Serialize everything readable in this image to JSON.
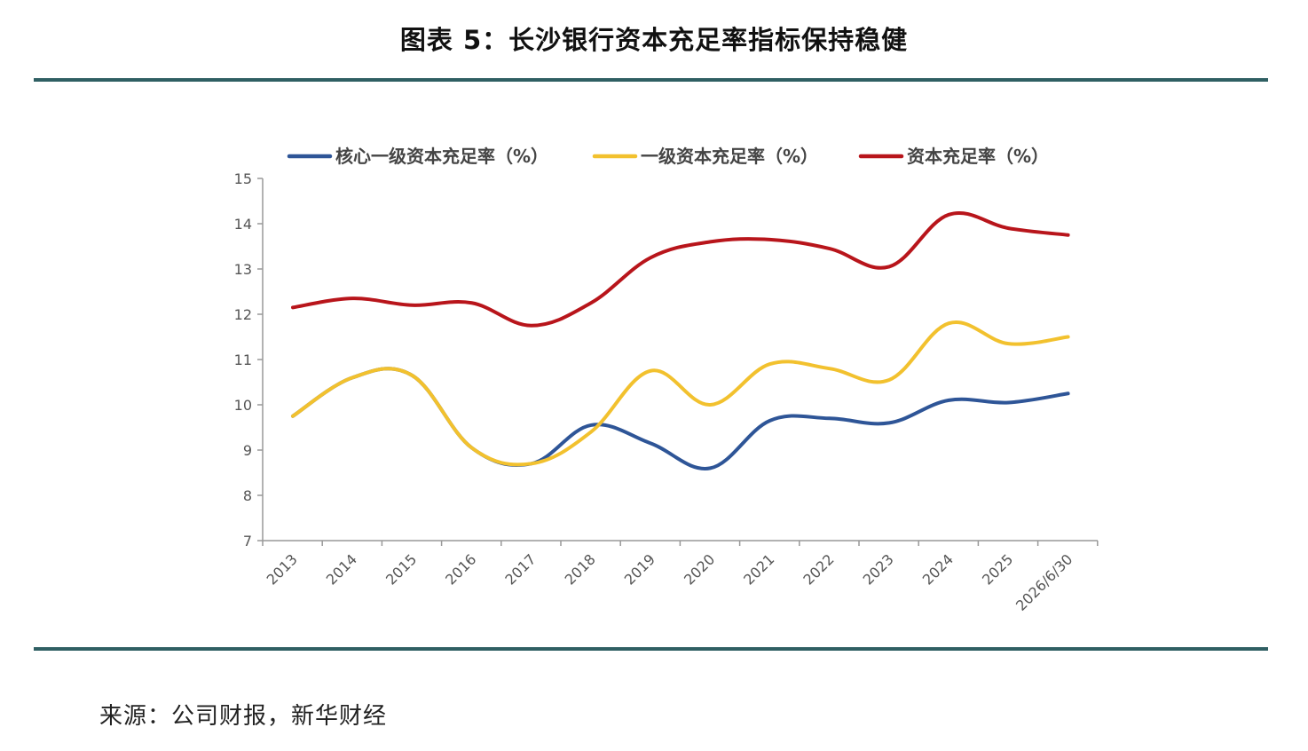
{
  "header": {
    "title": "图表 5：长沙银行资本充足率指标保持稳健"
  },
  "footer": {
    "source": "来源：公司财报，新华财经"
  },
  "chart_data": {
    "type": "line",
    "categories": [
      "2013",
      "2014",
      "2015",
      "2016",
      "2017",
      "2018",
      "2019",
      "2020",
      "2021",
      "2022",
      "2023",
      "2024",
      "2025",
      "2026/6/30"
    ],
    "series": [
      {
        "name": "核心一级资本充足率（%）",
        "color": "#2e5597",
        "values": [
          9.75,
          10.6,
          10.65,
          9.05,
          8.7,
          9.55,
          9.15,
          8.6,
          9.65,
          9.7,
          9.6,
          10.1,
          10.05,
          10.25
        ]
      },
      {
        "name": "一级资本充足率（%）",
        "color": "#f2c12e",
        "values": [
          9.75,
          10.6,
          10.65,
          9.05,
          8.7,
          9.4,
          10.75,
          10.0,
          10.9,
          10.8,
          10.55,
          11.8,
          11.35,
          11.5
        ]
      },
      {
        "name": "资本充足率（%）",
        "color": "#b8151b",
        "values": [
          12.15,
          12.35,
          12.2,
          12.25,
          11.75,
          12.25,
          13.25,
          13.6,
          13.65,
          13.45,
          13.05,
          14.2,
          13.9,
          13.75
        ]
      }
    ],
    "ylim": [
      7,
      15
    ],
    "yticks": [
      "7",
      "8",
      "9",
      "10",
      "11",
      "12",
      "13",
      "14",
      "15"
    ],
    "legend_position": "top",
    "grid": false
  }
}
